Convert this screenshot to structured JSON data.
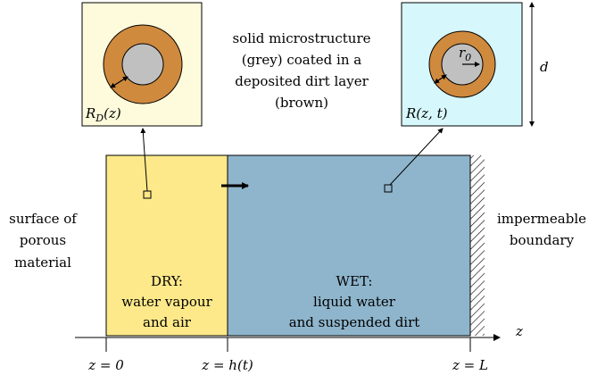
{
  "colors": {
    "dry_region": "#fde98a",
    "wet_region": "#8eb5cc",
    "dry_inset_bg": "#fefbdc",
    "wet_inset_bg": "#d6f7fb",
    "dirt_layer": "#cf8a3e",
    "solid_core": "#c0c0c0",
    "stroke": "#000000"
  },
  "insets": {
    "dry_radius_label": "R_D(z)",
    "wet_radius_label": "R(z, t)",
    "core_radius_label": "r_0",
    "height_label": "d"
  },
  "caption": {
    "line1": "solid microstructure",
    "line2": "(grey) coated in a",
    "line3": "deposited dirt layer",
    "line4": "(brown)"
  },
  "left_label": {
    "line1": "surface of",
    "line2": "porous",
    "line3": "material"
  },
  "right_label": {
    "line1": "impermeable",
    "line2": "boundary"
  },
  "dry": {
    "title": "DRY:",
    "line1": "water vapour",
    "line2": "and air"
  },
  "wet": {
    "title": "WET:",
    "line1": "liquid water",
    "line2": "and suspended dirt"
  },
  "axis": {
    "label": "z",
    "tick0": "z = 0",
    "tick_h": "z = h(t)",
    "tick_L": "z = L"
  }
}
